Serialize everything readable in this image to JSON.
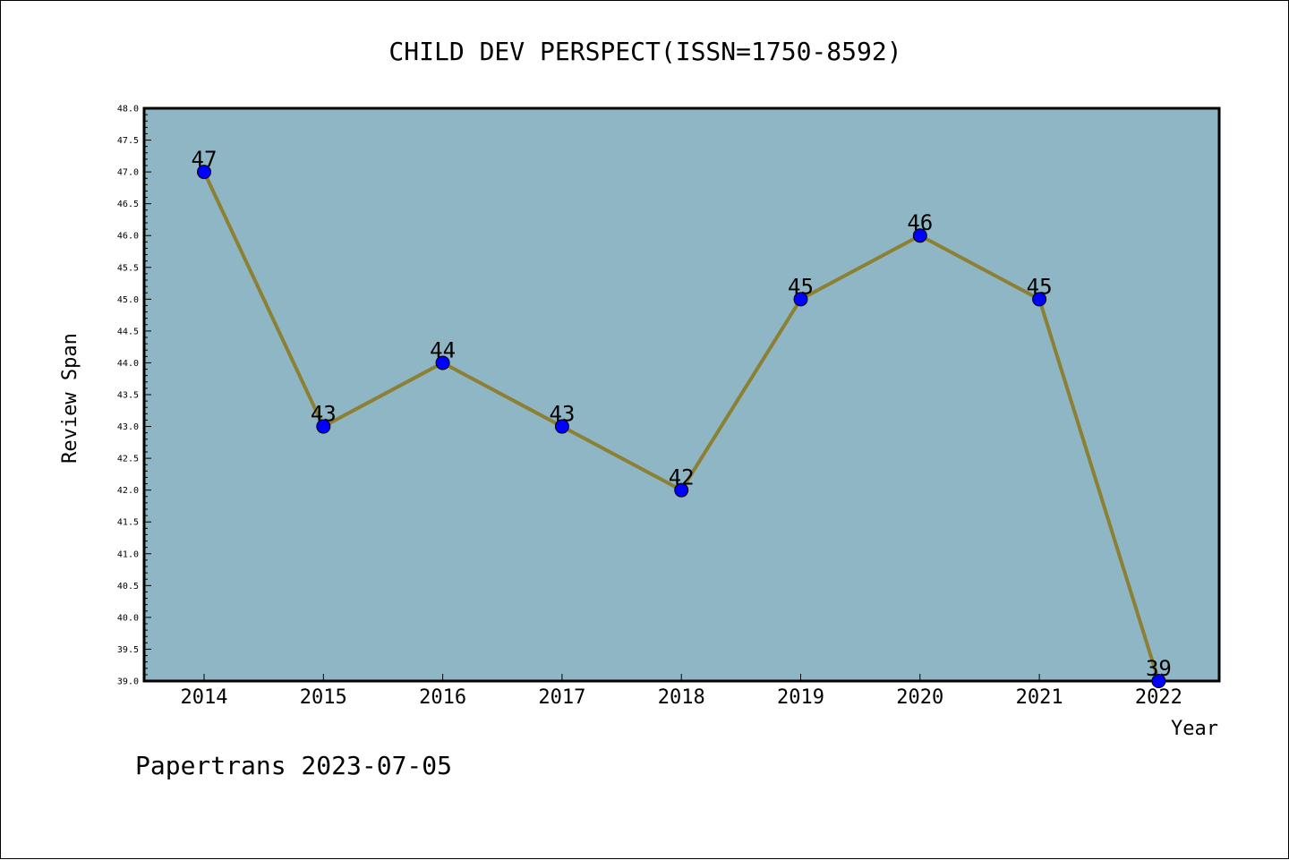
{
  "chart_data": {
    "type": "line",
    "title": "CHILD DEV PERSPECT(ISSN=1750-8592)",
    "xlabel": "Year",
    "ylabel": "Review Span",
    "categories": [
      "2014",
      "2015",
      "2016",
      "2017",
      "2018",
      "2019",
      "2020",
      "2021",
      "2022"
    ],
    "series": [
      {
        "values": [
          47,
          43,
          44,
          43,
          42,
          45,
          46,
          45,
          39
        ]
      }
    ],
    "ylim": [
      39.0,
      48.0
    ],
    "ytick_step": 0.5,
    "grid": false,
    "plot_background": "#8fb6c4",
    "line_color": "#8b8033",
    "marker_color": "#0000ff",
    "footer": "Papertrans 2023-07-05"
  }
}
